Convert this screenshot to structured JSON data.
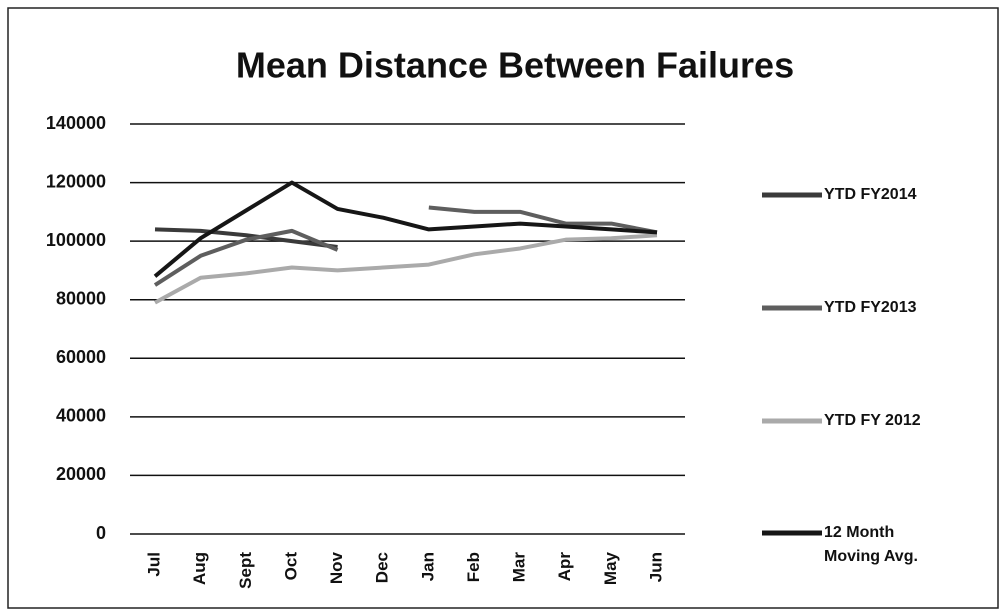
{
  "chart_data": {
    "type": "line",
    "title": "Mean Distance Between Failures",
    "categories": [
      "Jul",
      "Aug",
      "Sept",
      "Oct",
      "Nov",
      "Dec",
      "Jan",
      "Feb",
      "Mar",
      "Apr",
      "May",
      "Jun"
    ],
    "series": [
      {
        "name": "YTD FY2014",
        "color": "#3a3a3a",
        "values": [
          104000,
          103500,
          102000,
          100000,
          98000,
          null,
          null,
          null,
          null,
          null,
          null,
          null
        ]
      },
      {
        "name": "YTD FY2013",
        "color": "#5e5e5e",
        "values": [
          85000,
          95000,
          100500,
          103500,
          97000,
          null,
          111500,
          110000,
          110000,
          106000,
          106000,
          103000
        ]
      },
      {
        "name": "YTD FY 2012",
        "color": "#aaaaaa",
        "values": [
          79000,
          87500,
          89000,
          91000,
          90000,
          91000,
          92000,
          95500,
          97500,
          100500,
          101000,
          102000
        ]
      },
      {
        "name": "12 Month Moving Avg.",
        "color": "#161616",
        "values": [
          88000,
          101000,
          110500,
          120000,
          111000,
          108000,
          104000,
          105000,
          106000,
          105000,
          104000,
          103000
        ]
      }
    ],
    "ylim": [
      0,
      140000
    ],
    "yticks": [
      0,
      20000,
      40000,
      60000,
      80000,
      100000,
      120000,
      140000
    ],
    "grid": true
  }
}
